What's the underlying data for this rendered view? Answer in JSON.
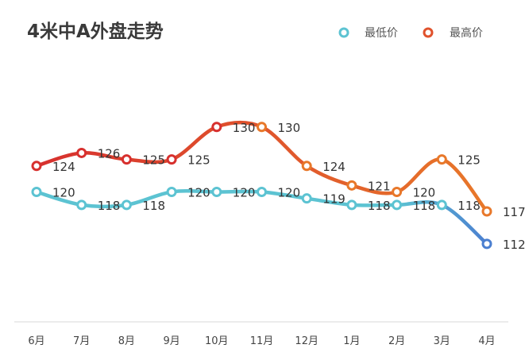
{
  "chart_data": {
    "type": "line",
    "title": "4米中A外盘走势",
    "xlabel": "",
    "ylabel": "",
    "categories": [
      "6月",
      "7月",
      "8月",
      "9月",
      "10月",
      "11月",
      "12月",
      "1月",
      "2月",
      "3月",
      "4月"
    ],
    "ylim": [
      100,
      140
    ],
    "grid": false,
    "legend_position": "top-right",
    "series": [
      {
        "name": "最低价",
        "values": [
          120,
          118,
          118,
          120,
          120,
          120,
          119,
          118,
          118,
          118,
          112
        ],
        "color_start": "#5CC3D2",
        "color_end": "#4B7FD0"
      },
      {
        "name": "最高价",
        "values": [
          124,
          126,
          125,
          125,
          130,
          130,
          124,
          121,
          120,
          125,
          117
        ],
        "color_start": "#D7302E",
        "color_end": "#E8782A"
      }
    ]
  }
}
